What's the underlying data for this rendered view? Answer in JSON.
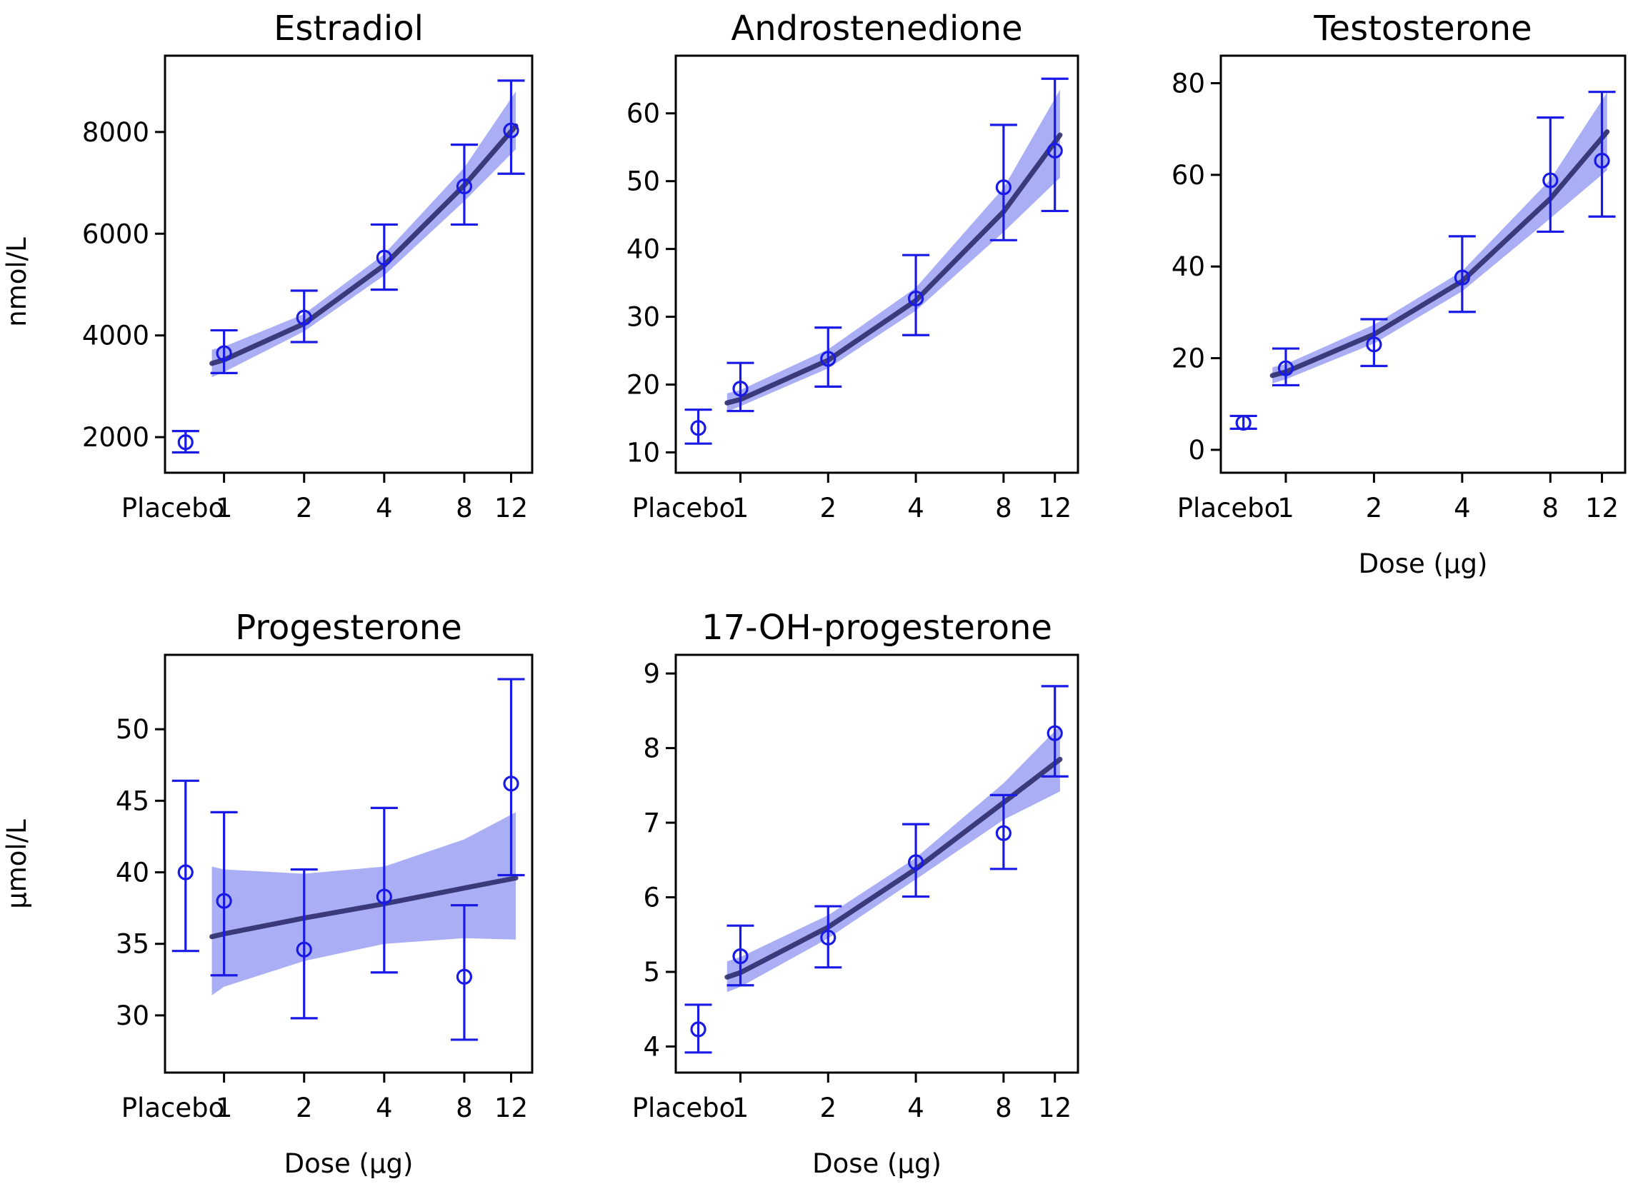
{
  "figure": {
    "ylabels": [
      "nmol/L",
      "µmol/L"
    ],
    "xlabel": "Dose (µg)"
  },
  "colors": {
    "points": "#1a1ae6",
    "band": "#a9aef5",
    "fit": "#2e2e6e"
  },
  "chart_data": [
    {
      "type": "scatter",
      "title": "Estradiol",
      "xlabel": "",
      "ylabel": "nmol/L",
      "x_scale": "log2",
      "categories": [
        "Placebo",
        "1",
        "2",
        "4",
        "8",
        "12"
      ],
      "x": [
        1,
        2,
        4,
        8,
        12
      ],
      "ylim": [
        1300,
        9500
      ],
      "yticks": [
        2000,
        4000,
        6000,
        8000
      ],
      "placebo": {
        "y": 1900,
        "lo": 1700,
        "hi": 2120
      },
      "y": [
        3650,
        4350,
        5530,
        6930,
        8030
      ],
      "err_lo": [
        3260,
        3870,
        4900,
        6180,
        7180
      ],
      "err_hi": [
        4100,
        4880,
        6180,
        7750,
        9010
      ],
      "fit": {
        "x": [
          0.9,
          1,
          2,
          4,
          8,
          12.5
        ],
        "y": [
          3450,
          3520,
          4230,
          5380,
          6950,
          8120
        ]
      },
      "band_lo": [
        3180,
        3280,
        4080,
        5180,
        6640,
        7660
      ],
      "band_hi": [
        3720,
        3780,
        4420,
        5600,
        7300,
        8800
      ]
    },
    {
      "type": "scatter",
      "title": "Androstenedione",
      "xlabel": "",
      "ylabel": "",
      "x_scale": "log2",
      "categories": [
        "Placebo",
        "1",
        "2",
        "4",
        "8",
        "12"
      ],
      "x": [
        1,
        2,
        4,
        8,
        12
      ],
      "ylim": [
        7,
        68.5
      ],
      "yticks": [
        10,
        20,
        30,
        40,
        50,
        60
      ],
      "placebo": {
        "y": 13.6,
        "lo": 11.3,
        "hi": 16.3
      },
      "y": [
        19.4,
        23.8,
        32.7,
        49.1,
        54.5
      ],
      "err_lo": [
        16.1,
        19.7,
        27.3,
        41.3,
        45.6
      ],
      "err_hi": [
        23.2,
        28.4,
        39.1,
        58.3,
        65.1
      ],
      "fit": {
        "x": [
          0.9,
          1,
          2,
          4,
          8,
          12.5
        ],
        "y": [
          17.3,
          17.8,
          23.6,
          32.4,
          45.5,
          56.8
        ]
      },
      "band_lo": [
        16.0,
        16.8,
        22.4,
        30.9,
        42.5,
        50.5
      ],
      "band_hi": [
        18.7,
        19.2,
        25.2,
        34.3,
        49.0,
        63.5
      ]
    },
    {
      "type": "scatter",
      "title": "Testosterone",
      "xlabel": "Dose (µg)",
      "ylabel": "",
      "x_scale": "log2",
      "categories": [
        "Placebo",
        "1",
        "2",
        "4",
        "8",
        "12"
      ],
      "x": [
        1,
        2,
        4,
        8,
        12
      ],
      "ylim": [
        -5,
        86
      ],
      "yticks": [
        0,
        20,
        40,
        60,
        80
      ],
      "placebo": {
        "y": 5.9,
        "lo": 4.6,
        "hi": 7.4
      },
      "y": [
        17.8,
        23.0,
        37.6,
        58.8,
        63.1
      ],
      "err_lo": [
        14.1,
        18.3,
        30.1,
        47.6,
        50.9
      ],
      "err_hi": [
        22.1,
        28.5,
        46.6,
        72.5,
        78.1
      ],
      "fit": {
        "x": [
          0.9,
          1,
          2,
          4,
          8,
          12.5
        ],
        "y": [
          16.2,
          17.0,
          25.2,
          36.8,
          54.8,
          69.4
        ]
      },
      "band_lo": [
        14.5,
        15.4,
        23.2,
        34.6,
        50.5,
        61.0
      ],
      "band_hi": [
        18.0,
        18.7,
        27.3,
        39.0,
        59.0,
        78.0
      ]
    },
    {
      "type": "scatter",
      "title": "Progesterone",
      "xlabel": "Dose (µg)",
      "ylabel": "µmol/L",
      "x_scale": "log2",
      "categories": [
        "Placebo",
        "1",
        "2",
        "4",
        "8",
        "12"
      ],
      "x": [
        1,
        2,
        4,
        8,
        12
      ],
      "ylim": [
        26,
        55.2
      ],
      "yticks": [
        30,
        35,
        40,
        45,
        50
      ],
      "placebo": {
        "y": 40.0,
        "lo": 34.5,
        "hi": 46.4
      },
      "y": [
        38.0,
        34.6,
        38.3,
        32.7,
        46.2
      ],
      "err_lo": [
        32.8,
        29.8,
        33.0,
        28.3,
        39.8
      ],
      "err_hi": [
        44.2,
        40.2,
        44.5,
        37.7,
        53.5
      ],
      "fit": {
        "x": [
          0.9,
          1,
          2,
          4,
          8,
          12.5
        ],
        "y": [
          35.5,
          35.7,
          36.8,
          37.8,
          38.9,
          39.6
        ]
      },
      "band_lo": [
        31.4,
        32.0,
        33.8,
        35.0,
        35.4,
        35.3
      ],
      "band_hi": [
        40.4,
        40.2,
        39.9,
        40.4,
        42.3,
        44.2
      ]
    },
    {
      "type": "scatter",
      "title": "17-OH-progesterone",
      "xlabel": "Dose (µg)",
      "ylabel": "",
      "x_scale": "log2",
      "categories": [
        "Placebo",
        "1",
        "2",
        "4",
        "8",
        "12"
      ],
      "x": [
        1,
        2,
        4,
        8,
        12
      ],
      "ylim": [
        3.65,
        9.25
      ],
      "yticks": [
        4,
        5,
        6,
        7,
        8,
        9
      ],
      "placebo": {
        "y": 4.23,
        "lo": 3.92,
        "hi": 4.56
      },
      "y": [
        5.21,
        5.46,
        6.47,
        6.86,
        8.2
      ],
      "err_lo": [
        4.82,
        5.06,
        6.01,
        6.38,
        7.62
      ],
      "err_hi": [
        5.62,
        5.88,
        6.98,
        7.37,
        8.83
      ],
      "fit": {
        "x": [
          0.9,
          1,
          2,
          4,
          8,
          12.5
        ],
        "y": [
          4.93,
          4.99,
          5.6,
          6.38,
          7.27,
          7.85
        ]
      },
      "band_lo": [
        4.73,
        4.8,
        5.45,
        6.24,
        7.04,
        7.42
      ],
      "band_hi": [
        5.14,
        5.2,
        5.76,
        6.53,
        7.53,
        8.3
      ]
    }
  ]
}
